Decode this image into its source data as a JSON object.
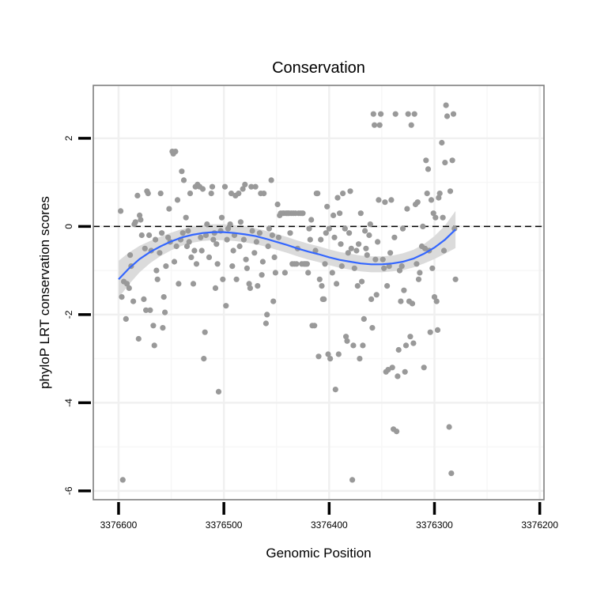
{
  "chart_data": {
    "type": "scatter",
    "title": "Conservation",
    "xlabel": "Genomic Position",
    "ylabel": "phyloP LRT conservation scores",
    "x_reversed": true,
    "xlim": [
      3376624,
      3376196
    ],
    "ylim": [
      -6.2,
      3.2
    ],
    "x_ticks": [
      3376600,
      3376500,
      3376400,
      3376300,
      3376200
    ],
    "x_tick_labels": [
      "3376600",
      "3376500",
      "3376400",
      "3376300",
      "3376200"
    ],
    "y_ticks": [
      -6,
      -4,
      -2,
      0,
      2
    ],
    "y_tick_labels": [
      "-6",
      "-4",
      "-2",
      "0",
      "2"
    ],
    "grid": true,
    "reference_line": {
      "y": 0,
      "style": "dashed"
    },
    "colors": {
      "points": "#999999",
      "smooth": "#3366ff",
      "band": "#d9d9d9",
      "frame": "#7f7f7f"
    },
    "points": [
      [
        3376598,
        0.35
      ],
      [
        3376597,
        -1.6
      ],
      [
        3376595,
        -1.25
      ],
      [
        3376596,
        -5.75
      ],
      [
        3376593,
        -2.1
      ],
      [
        3376592,
        -1.3
      ],
      [
        3376590,
        -1.4
      ],
      [
        3376589,
        -0.65
      ],
      [
        3376588,
        -0.9
      ],
      [
        3376586,
        -1.7
      ],
      [
        3376585,
        0.05
      ],
      [
        3376584,
        0.1
      ],
      [
        3376582,
        0.7
      ],
      [
        3376581,
        -2.55
      ],
      [
        3376580,
        0.25
      ],
      [
        3376579,
        0.15
      ],
      [
        3376578,
        -0.2
      ],
      [
        3376576,
        -1.65
      ],
      [
        3376575,
        -0.5
      ],
      [
        3376574,
        -1.9
      ],
      [
        3376573,
        0.8
      ],
      [
        3376572,
        0.75
      ],
      [
        3376571,
        -0.2
      ],
      [
        3376570,
        -1.9
      ],
      [
        3376569,
        -0.55
      ],
      [
        3376567,
        -2.25
      ],
      [
        3376566,
        -2.7
      ],
      [
        3376565,
        -0.3
      ],
      [
        3376564,
        -1.0
      ],
      [
        3376563,
        -1.2
      ],
      [
        3376561,
        -0.6
      ],
      [
        3376560,
        0.75
      ],
      [
        3376559,
        -0.15
      ],
      [
        3376558,
        -2.3
      ],
      [
        3376557,
        -1.6
      ],
      [
        3376556,
        -1.95
      ],
      [
        3376555,
        -0.9
      ],
      [
        3376553,
        -0.25
      ],
      [
        3376552,
        0.4
      ],
      [
        3376551,
        -0.35
      ],
      [
        3376549,
        1.7
      ],
      [
        3376548,
        1.65
      ],
      [
        3376547,
        -0.8
      ],
      [
        3376546,
        1.7
      ],
      [
        3376545,
        -0.45
      ],
      [
        3376544,
        0.6
      ],
      [
        3376543,
        -1.3
      ],
      [
        3376541,
        -0.3
      ],
      [
        3376540,
        1.25
      ],
      [
        3376539,
        -0.15
      ],
      [
        3376538,
        1.05
      ],
      [
        3376536,
        0.2
      ],
      [
        3376535,
        -0.45
      ],
      [
        3376534,
        -0.1
      ],
      [
        3376533,
        -0.35
      ],
      [
        3376532,
        0.75
      ],
      [
        3376531,
        -0.7
      ],
      [
        3376529,
        -1.3
      ],
      [
        3376528,
        -0.55
      ],
      [
        3376527,
        0.9
      ],
      [
        3376526,
        -0.85
      ],
      [
        3376525,
        0.95
      ],
      [
        3376523,
        0.9
      ],
      [
        3376522,
        -0.25
      ],
      [
        3376521,
        -0.55
      ],
      [
        3376520,
        0.85
      ],
      [
        3376519,
        -3.0
      ],
      [
        3376518,
        -2.4
      ],
      [
        3376517,
        -0.2
      ],
      [
        3376516,
        0.05
      ],
      [
        3376514,
        -0.7
      ],
      [
        3376512,
        0.75
      ],
      [
        3376511,
        0.9
      ],
      [
        3376510,
        -0.3
      ],
      [
        3376509,
        -0.15
      ],
      [
        3376508,
        -1.4
      ],
      [
        3376507,
        -0.4
      ],
      [
        3376506,
        -0.85
      ],
      [
        3376505,
        -3.75
      ],
      [
        3376503,
        -0.1
      ],
      [
        3376502,
        0.2
      ],
      [
        3376501,
        -1.2
      ],
      [
        3376499,
        0.9
      ],
      [
        3376498,
        -1.8
      ],
      [
        3376497,
        -0.3
      ],
      [
        3376496,
        -0.05
      ],
      [
        3376494,
        0.05
      ],
      [
        3376493,
        0.75
      ],
      [
        3376492,
        -0.9
      ],
      [
        3376491,
        -0.55
      ],
      [
        3376490,
        -0.2
      ],
      [
        3376489,
        0.7
      ],
      [
        3376488,
        -1.2
      ],
      [
        3376486,
        0.75
      ],
      [
        3376485,
        -0.45
      ],
      [
        3376484,
        0.1
      ],
      [
        3376482,
        0.85
      ],
      [
        3376481,
        -0.3
      ],
      [
        3376480,
        0.95
      ],
      [
        3376479,
        -0.75
      ],
      [
        3376478,
        -0.95
      ],
      [
        3376476,
        -1.3
      ],
      [
        3376475,
        -1.4
      ],
      [
        3376474,
        0.9
      ],
      [
        3376473,
        -0.1
      ],
      [
        3376471,
        -0.6
      ],
      [
        3376470,
        0.9
      ],
      [
        3376469,
        -0.35
      ],
      [
        3376468,
        -1.35
      ],
      [
        3376466,
        -0.15
      ],
      [
        3376465,
        0.75
      ],
      [
        3376464,
        -1.1
      ],
      [
        3376463,
        -0.8
      ],
      [
        3376462,
        0.75
      ],
      [
        3376460,
        -2.2
      ],
      [
        3376459,
        -2.0
      ],
      [
        3376458,
        -0.45
      ],
      [
        3376457,
        -0.05
      ],
      [
        3376455,
        1.05
      ],
      [
        3376454,
        -0.2
      ],
      [
        3376453,
        -1.7
      ],
      [
        3376452,
        -0.7
      ],
      [
        3376451,
        -1.05
      ],
      [
        3376449,
        0.5
      ],
      [
        3376448,
        -0.25
      ],
      [
        3376447,
        0.25
      ],
      [
        3376446,
        0.3
      ],
      [
        3376444,
        0.3
      ],
      [
        3376443,
        0.3
      ],
      [
        3376442,
        -1.05
      ],
      [
        3376441,
        0.3
      ],
      [
        3376440,
        0.3
      ],
      [
        3376439,
        0.3
      ],
      [
        3376438,
        0.3
      ],
      [
        3376437,
        -0.15
      ],
      [
        3376436,
        0.3
      ],
      [
        3376435,
        -0.85
      ],
      [
        3376434,
        0.3
      ],
      [
        3376433,
        -0.85
      ],
      [
        3376432,
        0.3
      ],
      [
        3376431,
        -0.85
      ],
      [
        3376430,
        -0.5
      ],
      [
        3376429,
        0.3
      ],
      [
        3376427,
        0.3
      ],
      [
        3376426,
        -0.85
      ],
      [
        3376425,
        0.3
      ],
      [
        3376424,
        -0.85
      ],
      [
        3376423,
        -0.85
      ],
      [
        3376422,
        -0.85
      ],
      [
        3376421,
        -0.85
      ],
      [
        3376420,
        -1.05
      ],
      [
        3376419,
        -0.05
      ],
      [
        3376418,
        -0.3
      ],
      [
        3376417,
        0.15
      ],
      [
        3376416,
        -2.25
      ],
      [
        3376414,
        -2.25
      ],
      [
        3376413,
        -0.55
      ],
      [
        3376412,
        0.75
      ],
      [
        3376411,
        0.75
      ],
      [
        3376410,
        -2.95
      ],
      [
        3376409,
        -1.2
      ],
      [
        3376408,
        -0.3
      ],
      [
        3376407,
        -1.35
      ],
      [
        3376406,
        -1.65
      ],
      [
        3376405,
        -1.65
      ],
      [
        3376404,
        -0.85
      ],
      [
        3376403,
        -0.15
      ],
      [
        3376402,
        0.45
      ],
      [
        3376401,
        -2.9
      ],
      [
        3376400,
        -0.05
      ],
      [
        3376399,
        -3.0
      ],
      [
        3376397,
        -1.05
      ],
      [
        3376396,
        0.25
      ],
      [
        3376395,
        -0.25
      ],
      [
        3376394,
        -3.7
      ],
      [
        3376393,
        -1.3
      ],
      [
        3376392,
        0.65
      ],
      [
        3376391,
        -2.9
      ],
      [
        3376390,
        0.3
      ],
      [
        3376389,
        -0.4
      ],
      [
        3376388,
        -0.9
      ],
      [
        3376387,
        0.75
      ],
      [
        3376385,
        -0.05
      ],
      [
        3376384,
        -2.5
      ],
      [
        3376383,
        -2.6
      ],
      [
        3376382,
        -0.6
      ],
      [
        3376381,
        -0.15
      ],
      [
        3376380,
        0.8
      ],
      [
        3376379,
        -0.5
      ],
      [
        3376378,
        -5.75
      ],
      [
        3376377,
        -2.7
      ],
      [
        3376376,
        -0.95
      ],
      [
        3376374,
        -0.55
      ],
      [
        3376373,
        -1.35
      ],
      [
        3376372,
        -0.4
      ],
      [
        3376371,
        -3.0
      ],
      [
        3376370,
        0.3
      ],
      [
        3376369,
        -1.25
      ],
      [
        3376368,
        -2.7
      ],
      [
        3376367,
        -2.1
      ],
      [
        3376366,
        -0.1
      ],
      [
        3376365,
        -0.5
      ],
      [
        3376364,
        -0.65
      ],
      [
        3376362,
        -0.2
      ],
      [
        3376361,
        0.05
      ],
      [
        3376360,
        -1.65
      ],
      [
        3376359,
        -2.3
      ],
      [
        3376358,
        2.55
      ],
      [
        3376357,
        2.3
      ],
      [
        3376356,
        -0.75
      ],
      [
        3376355,
        -1.55
      ],
      [
        3376354,
        -0.35
      ],
      [
        3376353,
        0.6
      ],
      [
        3376352,
        2.3
      ],
      [
        3376351,
        2.55
      ],
      [
        3376349,
        -0.75
      ],
      [
        3376348,
        -0.95
      ],
      [
        3376347,
        0.55
      ],
      [
        3376346,
        -3.3
      ],
      [
        3376345,
        -1.35
      ],
      [
        3376344,
        -3.25
      ],
      [
        3376343,
        -0.9
      ],
      [
        3376342,
        -0.6
      ],
      [
        3376341,
        0.6
      ],
      [
        3376340,
        -3.2
      ],
      [
        3376339,
        -4.6
      ],
      [
        3376338,
        -0.25
      ],
      [
        3376337,
        2.55
      ],
      [
        3376336,
        -4.65
      ],
      [
        3376335,
        -3.4
      ],
      [
        3376334,
        -2.8
      ],
      [
        3376333,
        -1.0
      ],
      [
        3376332,
        -1.7
      ],
      [
        3376331,
        -0.9
      ],
      [
        3376330,
        -0.05
      ],
      [
        3376329,
        -1.45
      ],
      [
        3376328,
        -3.3
      ],
      [
        3376327,
        -2.7
      ],
      [
        3376326,
        0.4
      ],
      [
        3376325,
        2.55
      ],
      [
        3376324,
        -1.7
      ],
      [
        3376323,
        -2.5
      ],
      [
        3376322,
        2.3
      ],
      [
        3376321,
        -1.75
      ],
      [
        3376320,
        -2.65
      ],
      [
        3376319,
        2.55
      ],
      [
        3376318,
        0.5
      ],
      [
        3376317,
        -0.85
      ],
      [
        3376316,
        0.55
      ],
      [
        3376315,
        -1.2
      ],
      [
        3376314,
        -1.05
      ],
      [
        3376312,
        -0.45
      ],
      [
        3376311,
        0.0
      ],
      [
        3376310,
        -3.2
      ],
      [
        3376309,
        -0.5
      ],
      [
        3376308,
        1.5
      ],
      [
        3376307,
        0.75
      ],
      [
        3376306,
        1.3
      ],
      [
        3376305,
        -0.55
      ],
      [
        3376304,
        -2.4
      ],
      [
        3376303,
        0.6
      ],
      [
        3376302,
        -0.95
      ],
      [
        3376301,
        0.3
      ],
      [
        3376300,
        -1.6
      ],
      [
        3376299,
        0.2
      ],
      [
        3376298,
        -1.7
      ],
      [
        3376297,
        -2.35
      ],
      [
        3376296,
        0.65
      ],
      [
        3376295,
        0.75
      ],
      [
        3376293,
        1.9
      ],
      [
        3376292,
        0.2
      ],
      [
        3376291,
        -0.55
      ],
      [
        3376290,
        1.45
      ],
      [
        3376289,
        2.75
      ],
      [
        3376288,
        2.5
      ],
      [
        3376286,
        -4.55
      ],
      [
        3376285,
        0.8
      ],
      [
        3376284,
        -5.6
      ],
      [
        3376283,
        1.5
      ],
      [
        3376282,
        2.55
      ],
      [
        3376281,
        -0.05
      ],
      [
        3376280,
        -1.2
      ]
    ],
    "smooth_line": [
      [
        3376600,
        -1.2
      ],
      [
        3376590,
        -0.95
      ],
      [
        3376580,
        -0.74
      ],
      [
        3376570,
        -0.58
      ],
      [
        3376560,
        -0.45
      ],
      [
        3376550,
        -0.34
      ],
      [
        3376540,
        -0.25
      ],
      [
        3376530,
        -0.19
      ],
      [
        3376520,
        -0.15
      ],
      [
        3376510,
        -0.13
      ],
      [
        3376500,
        -0.13
      ],
      [
        3376490,
        -0.15
      ],
      [
        3376480,
        -0.18
      ],
      [
        3376470,
        -0.22
      ],
      [
        3376460,
        -0.28
      ],
      [
        3376450,
        -0.35
      ],
      [
        3376440,
        -0.42
      ],
      [
        3376430,
        -0.5
      ],
      [
        3376420,
        -0.57
      ],
      [
        3376410,
        -0.63
      ],
      [
        3376400,
        -0.7
      ],
      [
        3376390,
        -0.76
      ],
      [
        3376380,
        -0.8
      ],
      [
        3376370,
        -0.84
      ],
      [
        3376360,
        -0.86
      ],
      [
        3376350,
        -0.86
      ],
      [
        3376340,
        -0.84
      ],
      [
        3376330,
        -0.8
      ],
      [
        3376320,
        -0.73
      ],
      [
        3376310,
        -0.62
      ],
      [
        3376300,
        -0.48
      ],
      [
        3376290,
        -0.3
      ],
      [
        3376280,
        -0.07
      ]
    ],
    "band_halfwidth": [
      0.42,
      0.36,
      0.3,
      0.25,
      0.22,
      0.2,
      0.19,
      0.18,
      0.18,
      0.18,
      0.18,
      0.18,
      0.18,
      0.18,
      0.18,
      0.18,
      0.18,
      0.18,
      0.18,
      0.18,
      0.18,
      0.18,
      0.18,
      0.18,
      0.18,
      0.18,
      0.18,
      0.19,
      0.2,
      0.22,
      0.26,
      0.32,
      0.42
    ]
  }
}
